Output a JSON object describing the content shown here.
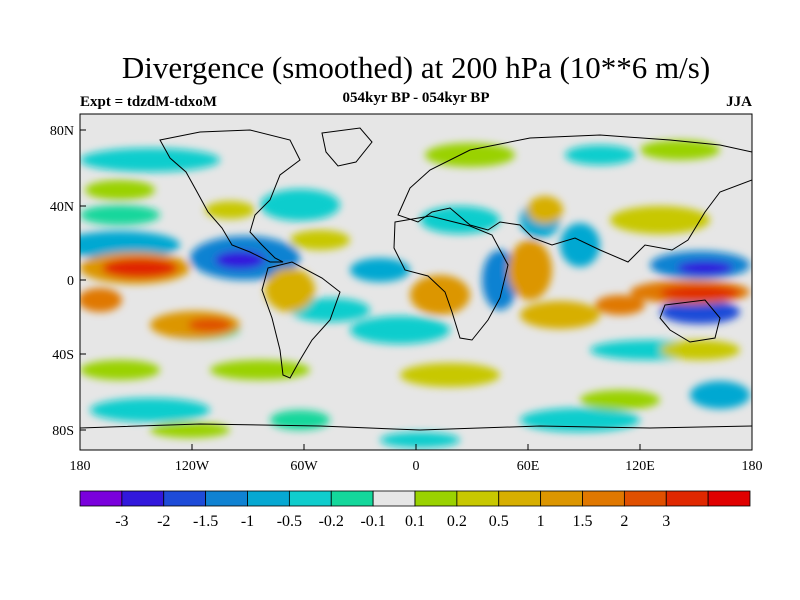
{
  "title": "Divergence (smoothed) at 200 hPa (10**6 m/s)",
  "subtitle": "054kyr BP - 054kyr BP",
  "experiment": "Expt = tdzdM-tdxoM",
  "season": "JJA",
  "lat_ticks": [
    "80N",
    "40N",
    "0",
    "40S",
    "80S"
  ],
  "lon_ticks": [
    "180",
    "120W",
    "60W",
    "0",
    "60E",
    "120E",
    "180"
  ],
  "colorbar": {
    "colors": [
      "#7a00dc",
      "#3218dc",
      "#1e4bd8",
      "#0f82d2",
      "#06a8d2",
      "#0fcdcd",
      "#14d79b",
      "#e6e6e6",
      "#9ad200",
      "#c8c800",
      "#d7af00",
      "#dc9600",
      "#e07800",
      "#e05000",
      "#e02800",
      "#e00000"
    ],
    "labels": [
      "-3",
      "-2",
      "-1.5",
      "-1",
      "-0.5",
      "-0.2",
      "-0.1",
      "0.1",
      "0.2",
      "0.5",
      "1",
      "1.5",
      "2",
      "3"
    ]
  }
}
